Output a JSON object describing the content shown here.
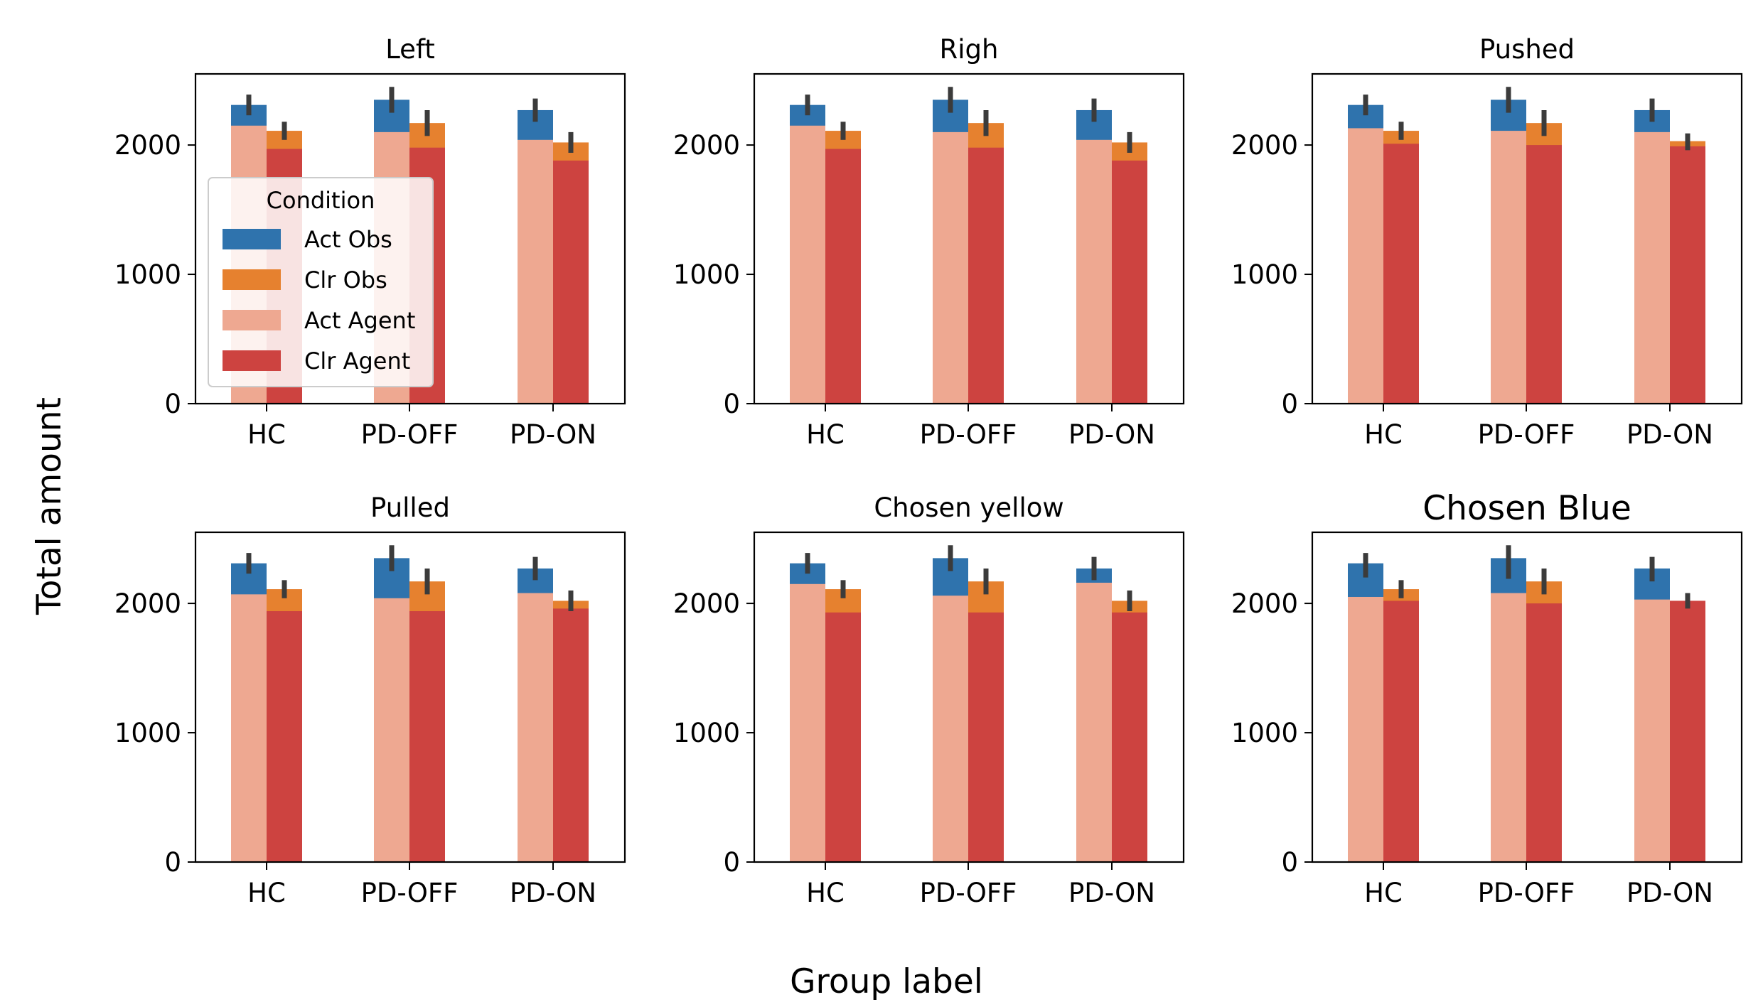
{
  "figure": {
    "ylabel": "Total amount",
    "xlabel": "Group label"
  },
  "legend": {
    "title": "Condition",
    "placement": "upper-left of first panel",
    "entries": [
      {
        "label": "Act Obs",
        "color": "#2f73ad"
      },
      {
        "label": "Clr Obs",
        "color": "#e6812f"
      },
      {
        "label": "Act Agent",
        "color": "#eea891"
      },
      {
        "label": "Clr Agent",
        "color": "#cd4340"
      }
    ]
  },
  "colors": {
    "act_obs": "#2f73ad",
    "clr_obs": "#e6812f",
    "act_agent": "#eea891",
    "clr_agent": "#cd4340",
    "error_bar": "#3b3b3b"
  },
  "chart_data": [
    {
      "type": "bar",
      "title": "Left",
      "categories": [
        "HC",
        "PD-OFF",
        "PD-ON"
      ],
      "ylim": [
        0,
        2550
      ],
      "yticks": [
        0,
        1000,
        2000
      ],
      "grid": false,
      "series": [
        {
          "name": "Act Obs",
          "values": [
            2310,
            2350,
            2270
          ],
          "ci": [
            [
              2230,
              2390
            ],
            [
              2250,
              2450
            ],
            [
              2180,
              2360
            ]
          ]
        },
        {
          "name": "Clr Obs",
          "values": [
            2110,
            2170,
            2020
          ],
          "ci": [
            [
              2040,
              2180
            ],
            [
              2070,
              2270
            ],
            [
              1940,
              2100
            ]
          ]
        },
        {
          "name": "Act Agent",
          "values": [
            2150,
            2100,
            2040
          ]
        },
        {
          "name": "Clr Agent",
          "values": [
            1970,
            1980,
            1880
          ]
        }
      ]
    },
    {
      "type": "bar",
      "title": "Righ",
      "categories": [
        "HC",
        "PD-OFF",
        "PD-ON"
      ],
      "ylim": [
        0,
        2550
      ],
      "yticks": [
        0,
        1000,
        2000
      ],
      "grid": false,
      "series": [
        {
          "name": "Act Obs",
          "values": [
            2310,
            2350,
            2270
          ],
          "ci": [
            [
              2230,
              2390
            ],
            [
              2250,
              2450
            ],
            [
              2180,
              2360
            ]
          ]
        },
        {
          "name": "Clr Obs",
          "values": [
            2110,
            2170,
            2020
          ],
          "ci": [
            [
              2040,
              2180
            ],
            [
              2070,
              2270
            ],
            [
              1940,
              2100
            ]
          ]
        },
        {
          "name": "Act Agent",
          "values": [
            2150,
            2100,
            2040
          ]
        },
        {
          "name": "Clr Agent",
          "values": [
            1970,
            1980,
            1880
          ]
        }
      ]
    },
    {
      "type": "bar",
      "title": "Pushed",
      "categories": [
        "HC",
        "PD-OFF",
        "PD-ON"
      ],
      "ylim": [
        0,
        2550
      ],
      "yticks": [
        0,
        1000,
        2000
      ],
      "grid": false,
      "series": [
        {
          "name": "Act Obs",
          "values": [
            2310,
            2350,
            2270
          ],
          "ci": [
            [
              2230,
              2390
            ],
            [
              2250,
              2450
            ],
            [
              2180,
              2360
            ]
          ]
        },
        {
          "name": "Clr Obs",
          "values": [
            2110,
            2170,
            2030
          ],
          "ci": [
            [
              2040,
              2180
            ],
            [
              2070,
              2270
            ],
            [
              1960,
              2090
            ]
          ]
        },
        {
          "name": "Act Agent",
          "values": [
            2130,
            2110,
            2100
          ]
        },
        {
          "name": "Clr Agent",
          "values": [
            2010,
            2000,
            1990
          ]
        }
      ]
    },
    {
      "type": "bar",
      "title": "Pulled",
      "categories": [
        "HC",
        "PD-OFF",
        "PD-ON"
      ],
      "ylim": [
        0,
        2550
      ],
      "yticks": [
        0,
        1000,
        2000
      ],
      "grid": false,
      "series": [
        {
          "name": "Act Obs",
          "values": [
            2310,
            2350,
            2270
          ],
          "ci": [
            [
              2230,
              2390
            ],
            [
              2250,
              2450
            ],
            [
              2180,
              2360
            ]
          ]
        },
        {
          "name": "Clr Obs",
          "values": [
            2110,
            2170,
            2020
          ],
          "ci": [
            [
              2040,
              2180
            ],
            [
              2070,
              2270
            ],
            [
              1940,
              2100
            ]
          ]
        },
        {
          "name": "Act Agent",
          "values": [
            2070,
            2040,
            2080
          ]
        },
        {
          "name": "Clr Agent",
          "values": [
            1940,
            1940,
            1960
          ]
        }
      ]
    },
    {
      "type": "bar",
      "title": "Chosen yellow",
      "categories": [
        "HC",
        "PD-OFF",
        "PD-ON"
      ],
      "ylim": [
        0,
        2550
      ],
      "yticks": [
        0,
        1000,
        2000
      ],
      "grid": false,
      "series": [
        {
          "name": "Act Obs",
          "values": [
            2310,
            2350,
            2270
          ],
          "ci": [
            [
              2230,
              2390
            ],
            [
              2250,
              2450
            ],
            [
              2180,
              2360
            ]
          ]
        },
        {
          "name": "Clr Obs",
          "values": [
            2110,
            2170,
            2020
          ],
          "ci": [
            [
              2040,
              2180
            ],
            [
              2070,
              2270
            ],
            [
              1940,
              2100
            ]
          ]
        },
        {
          "name": "Act Agent",
          "values": [
            2150,
            2060,
            2160
          ]
        },
        {
          "name": "Clr Agent",
          "values": [
            1930,
            1930,
            1930
          ]
        }
      ]
    },
    {
      "type": "bar",
      "title": "Chosen Blue",
      "categories": [
        "HC",
        "PD-OFF",
        "PD-ON"
      ],
      "ylim": [
        0,
        2550
      ],
      "yticks": [
        0,
        1000,
        2000
      ],
      "grid": false,
      "series": [
        {
          "name": "Act Obs",
          "values": [
            2310,
            2350,
            2270
          ],
          "ci": [
            [
              2200,
              2390
            ],
            [
              2190,
              2450
            ],
            [
              2170,
              2360
            ]
          ]
        },
        {
          "name": "Clr Obs",
          "values": [
            2110,
            2170,
            2020
          ],
          "ci": [
            [
              2040,
              2180
            ],
            [
              2070,
              2270
            ],
            [
              1960,
              2080
            ]
          ]
        },
        {
          "name": "Act Agent",
          "values": [
            2050,
            2080,
            2030
          ]
        },
        {
          "name": "Clr Agent",
          "values": [
            2020,
            2000,
            2020
          ]
        }
      ]
    }
  ]
}
